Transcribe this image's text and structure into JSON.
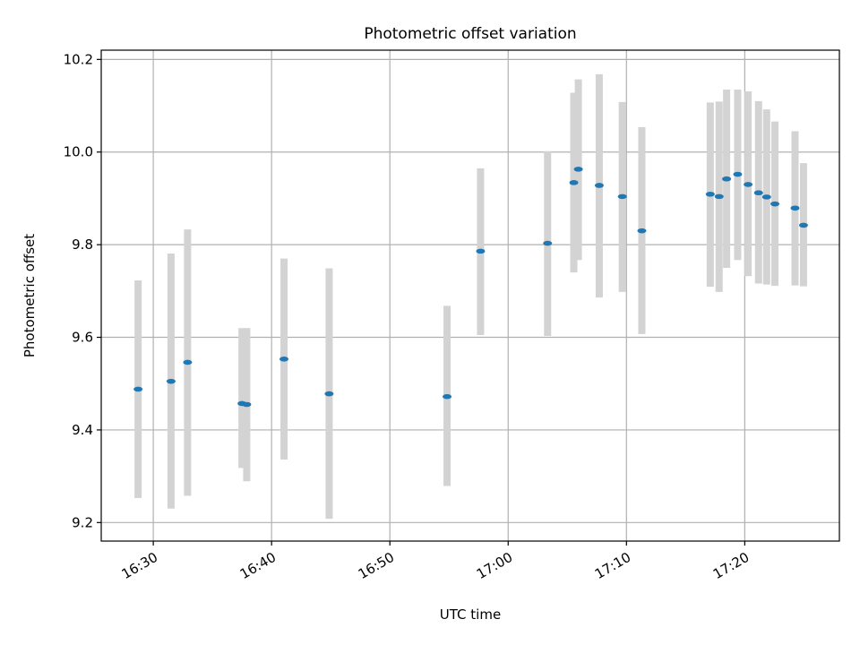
{
  "chart_data": {
    "type": "scatter",
    "title": "Photometric offset variation",
    "xlabel": "UTC time",
    "ylabel": "Photometric offset",
    "xlim": [
      "16:25:36",
      "17:28:00"
    ],
    "ylim": [
      9.16,
      10.22
    ],
    "xticks": [
      "16:30",
      "16:40",
      "16:50",
      "17:00",
      "17:10",
      "17:20"
    ],
    "yticks": [
      9.2,
      9.4,
      9.6,
      9.8,
      10.0,
      10.2
    ],
    "grid": true,
    "marker_color": "#1f77b4",
    "errorbar_color": "#d3d3d3",
    "points": [
      {
        "t": "16:28:43",
        "y": 9.488,
        "lo": 9.253,
        "hi": 9.723
      },
      {
        "t": "16:31:30",
        "y": 9.505,
        "lo": 9.23,
        "hi": 9.781
      },
      {
        "t": "16:32:54",
        "y": 9.546,
        "lo": 9.258,
        "hi": 9.833
      },
      {
        "t": "16:37:30",
        "y": 9.457,
        "lo": 9.318,
        "hi": 9.62
      },
      {
        "t": "16:37:54",
        "y": 9.455,
        "lo": 9.289,
        "hi": 9.62
      },
      {
        "t": "16:41:03",
        "y": 9.553,
        "lo": 9.336,
        "hi": 9.77
      },
      {
        "t": "16:44:52",
        "y": 9.478,
        "lo": 9.208,
        "hi": 9.749
      },
      {
        "t": "16:54:50",
        "y": 9.472,
        "lo": 9.279,
        "hi": 9.668
      },
      {
        "t": "16:57:40",
        "y": 9.786,
        "lo": 9.605,
        "hi": 9.965
      },
      {
        "t": "17:03:20",
        "y": 9.803,
        "lo": 9.603,
        "hi": 10.002
      },
      {
        "t": "17:05:33",
        "y": 9.934,
        "lo": 9.74,
        "hi": 10.128
      },
      {
        "t": "17:05:56",
        "y": 9.963,
        "lo": 9.767,
        "hi": 10.157
      },
      {
        "t": "17:07:42",
        "y": 9.928,
        "lo": 9.686,
        "hi": 10.168
      },
      {
        "t": "17:09:39",
        "y": 9.904,
        "lo": 9.698,
        "hi": 10.108
      },
      {
        "t": "17:11:18",
        "y": 9.83,
        "lo": 9.607,
        "hi": 10.054
      },
      {
        "t": "17:17:05",
        "y": 9.909,
        "lo": 9.709,
        "hi": 10.107
      },
      {
        "t": "17:17:50",
        "y": 9.904,
        "lo": 9.698,
        "hi": 10.109
      },
      {
        "t": "17:18:28",
        "y": 9.942,
        "lo": 9.75,
        "hi": 10.135
      },
      {
        "t": "17:19:24",
        "y": 9.952,
        "lo": 9.767,
        "hi": 10.135
      },
      {
        "t": "17:20:17",
        "y": 9.93,
        "lo": 9.732,
        "hi": 10.131
      },
      {
        "t": "17:21:10",
        "y": 9.912,
        "lo": 9.716,
        "hi": 10.11
      },
      {
        "t": "17:21:51",
        "y": 9.903,
        "lo": 9.714,
        "hi": 10.092
      },
      {
        "t": "17:22:33",
        "y": 9.888,
        "lo": 9.711,
        "hi": 10.066
      },
      {
        "t": "17:24:15",
        "y": 9.879,
        "lo": 9.712,
        "hi": 10.045
      },
      {
        "t": "17:24:58",
        "y": 9.842,
        "lo": 9.71,
        "hi": 9.976
      }
    ]
  }
}
